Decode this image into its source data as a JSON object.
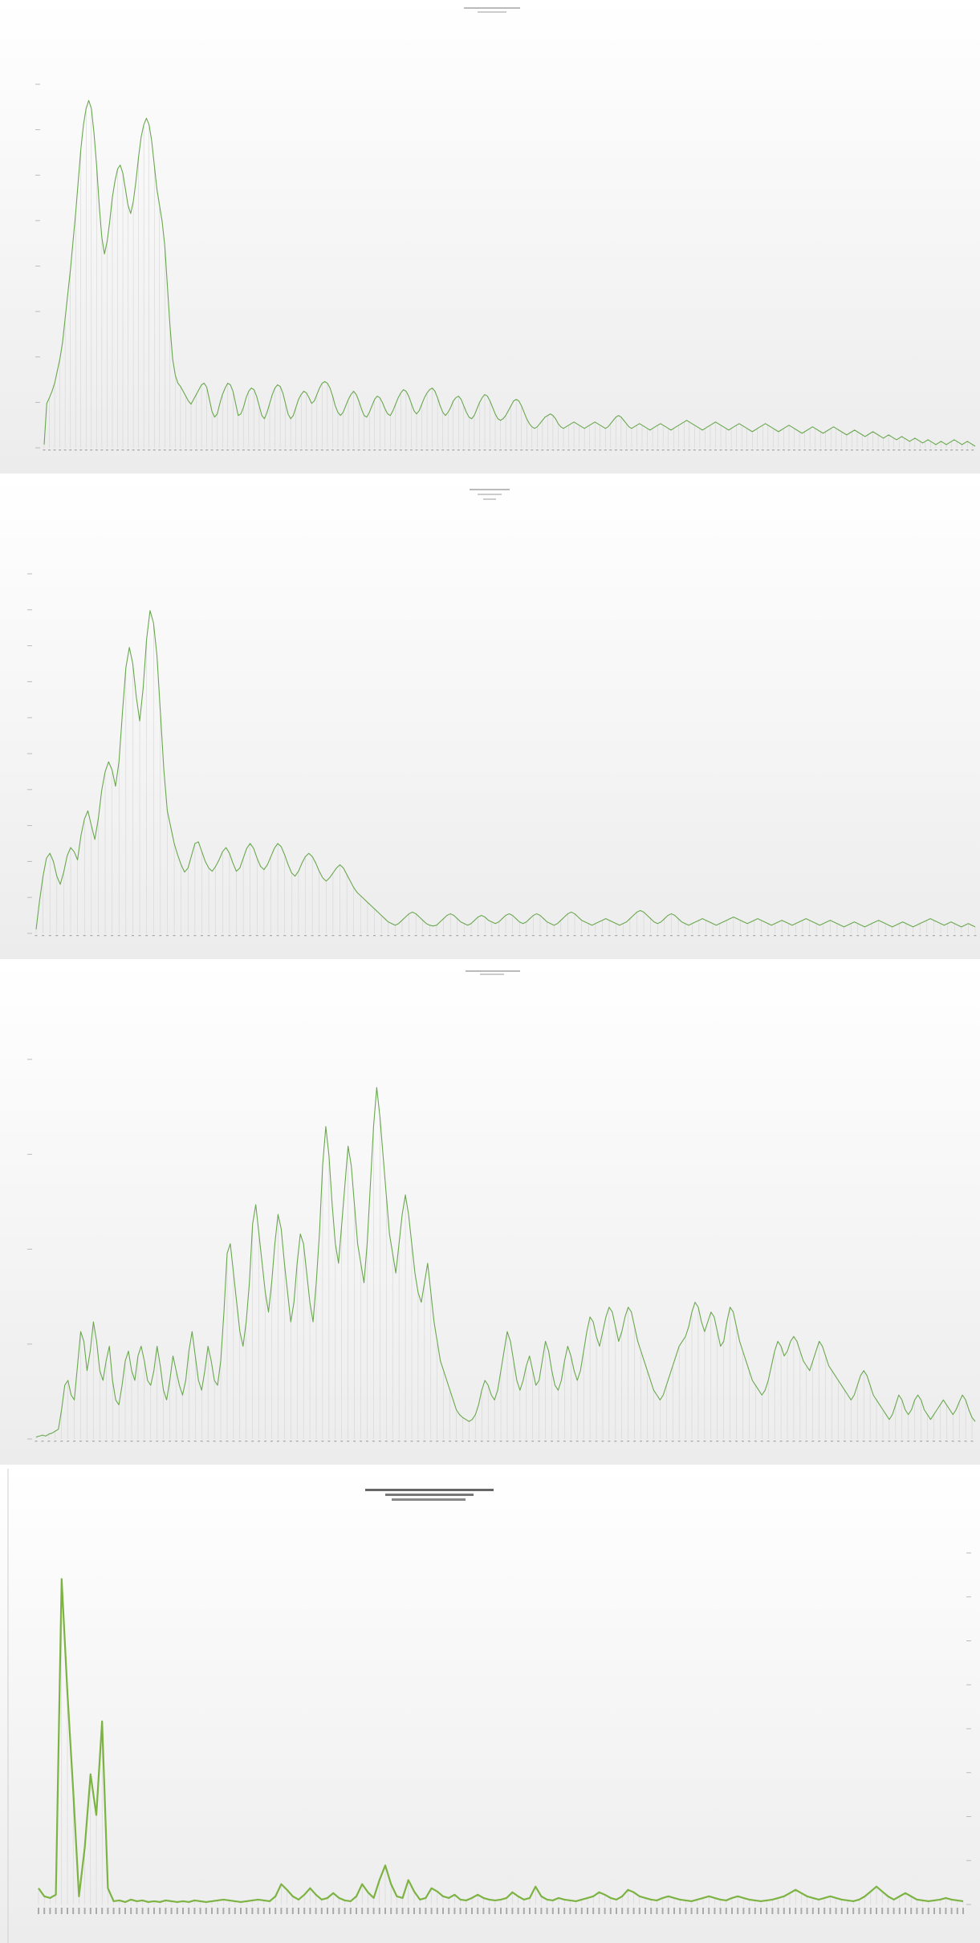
{
  "colors": {
    "line": "#6aa84f",
    "line_bold": "#7cb342",
    "bg_top": "#ffffff",
    "bg_bottom": "#efefef",
    "grid": "#d0d0d0"
  },
  "chart_data": [
    {
      "type": "line",
      "title": "",
      "subtitle": "",
      "values": [
        4,
        55,
        62,
        70,
        80,
        95,
        110,
        130,
        160,
        190,
        220,
        255,
        290,
        330,
        370,
        400,
        420,
        430,
        420,
        390,
        350,
        300,
        260,
        240,
        255,
        280,
        310,
        330,
        345,
        350,
        340,
        320,
        300,
        290,
        305,
        330,
        360,
        385,
        400,
        408,
        400,
        380,
        350,
        320,
        300,
        280,
        250,
        200,
        150,
        110,
        90,
        80,
        76,
        70,
        64,
        58,
        54,
        60,
        66,
        72,
        78,
        80,
        75,
        60,
        45,
        38,
        42,
        55,
        66,
        74,
        80,
        78,
        70,
        55,
        40,
        42,
        50,
        62,
        70,
        74,
        72,
        64,
        52,
        40,
        36,
        44,
        55,
        66,
        74,
        78,
        76,
        68,
        55,
        42,
        36,
        40,
        50,
        60,
        66,
        70,
        68,
        62,
        55,
        58,
        66,
        74,
        80,
        82,
        80,
        74,
        64,
        52,
        44,
        40,
        44,
        52,
        60,
        66,
        70,
        66,
        58,
        48,
        40,
        38,
        44,
        52,
        60,
        64,
        62,
        56,
        48,
        42,
        40,
        46,
        54,
        62,
        68,
        72,
        70,
        64,
        55,
        46,
        42,
        46,
        54,
        62,
        68,
        72,
        74,
        70,
        62,
        52,
        44,
        40,
        44,
        50,
        58,
        62,
        64,
        60,
        52,
        44,
        38,
        36,
        40,
        48,
        56,
        62,
        66,
        64,
        58,
        50,
        42,
        36,
        34,
        36,
        40,
        46,
        52,
        58,
        60,
        58,
        52,
        44,
        36,
        30,
        26,
        24,
        26,
        30,
        34,
        38,
        40,
        42,
        40,
        36,
        30,
        26,
        24,
        26,
        28,
        30,
        32,
        30,
        28,
        26,
        24,
        26,
        28,
        30,
        32,
        30,
        28,
        26,
        24,
        26,
        30,
        34,
        38,
        40,
        38,
        34,
        30,
        26,
        24,
        26,
        28,
        30,
        28,
        26,
        24,
        22,
        24,
        26,
        28,
        30,
        28,
        26,
        24,
        22,
        24,
        26,
        28,
        30,
        32,
        34,
        32,
        30,
        28,
        26,
        24,
        22,
        24,
        26,
        28,
        30,
        32,
        30,
        28,
        26,
        24,
        22,
        24,
        26,
        28,
        30,
        28,
        26,
        24,
        22,
        20,
        22,
        24,
        26,
        28,
        30,
        28,
        26,
        24,
        22,
        20,
        22,
        24,
        26,
        28,
        26,
        24,
        22,
        20,
        18,
        20,
        22,
        24,
        26,
        24,
        22,
        20,
        18,
        20,
        22,
        24,
        26,
        24,
        22,
        20,
        18,
        16,
        18,
        20,
        22,
        20,
        18,
        16,
        14,
        16,
        18,
        20,
        18,
        16,
        14,
        12,
        14,
        16,
        14,
        12,
        10,
        12,
        14,
        12,
        10,
        8,
        10,
        12,
        10,
        8,
        6,
        8,
        10,
        8,
        6,
        4,
        6,
        8,
        6,
        4,
        6,
        8,
        10,
        8,
        6,
        4,
        6,
        8,
        6,
        4,
        2
      ],
      "ylim": [
        0,
        450
      ]
    },
    {
      "type": "line",
      "title": "",
      "subtitle": "",
      "values": [
        5,
        40,
        70,
        92,
        98,
        88,
        70,
        60,
        75,
        95,
        105,
        100,
        90,
        120,
        140,
        150,
        132,
        115,
        140,
        175,
        198,
        210,
        200,
        180,
        210,
        270,
        325,
        350,
        330,
        290,
        260,
        300,
        360,
        395,
        380,
        340,
        270,
        200,
        150,
        130,
        110,
        96,
        84,
        75,
        80,
        95,
        110,
        112,
        100,
        88,
        80,
        76,
        82,
        90,
        100,
        105,
        98,
        86,
        76,
        80,
        92,
        104,
        110,
        104,
        92,
        82,
        78,
        84,
        94,
        104,
        110,
        106,
        96,
        84,
        74,
        70,
        76,
        86,
        94,
        98,
        94,
        86,
        76,
        68,
        64,
        68,
        74,
        80,
        84,
        80,
        72,
        64,
        56,
        50,
        46,
        42,
        38,
        34,
        30,
        26,
        22,
        18,
        14,
        12,
        10,
        12,
        16,
        20,
        24,
        26,
        24,
        20,
        16,
        12,
        10,
        9,
        10,
        14,
        18,
        22,
        24,
        22,
        18,
        14,
        12,
        10,
        12,
        16,
        20,
        22,
        20,
        16,
        14,
        12,
        14,
        18,
        22,
        24,
        22,
        18,
        14,
        12,
        14,
        18,
        22,
        24,
        22,
        18,
        14,
        12,
        10,
        12,
        16,
        20,
        24,
        26,
        24,
        20,
        16,
        14,
        12,
        10,
        12,
        14,
        16,
        18,
        16,
        14,
        12,
        10,
        12,
        14,
        18,
        22,
        26,
        28,
        26,
        22,
        18,
        14,
        12,
        14,
        18,
        22,
        24,
        22,
        18,
        14,
        12,
        10,
        12,
        14,
        16,
        18,
        16,
        14,
        12,
        10,
        12,
        14,
        16,
        18,
        20,
        18,
        16,
        14,
        12,
        14,
        16,
        18,
        16,
        14,
        12,
        10,
        12,
        14,
        16,
        14,
        12,
        10,
        12,
        14,
        16,
        18,
        16,
        14,
        12,
        10,
        12,
        14,
        16,
        14,
        12,
        10,
        8,
        10,
        12,
        14,
        12,
        10,
        8,
        10,
        12,
        14,
        16,
        14,
        12,
        10,
        8,
        10,
        12,
        14,
        12,
        10,
        8,
        10,
        12,
        14,
        16,
        18,
        16,
        14,
        12,
        10,
        12,
        14,
        12,
        10,
        8,
        10,
        12,
        10,
        8
      ],
      "ylim": [
        0,
        440
      ]
    },
    {
      "type": "line",
      "title": "",
      "subtitle": "",
      "values": [
        2,
        3,
        4,
        3,
        5,
        6,
        8,
        10,
        30,
        55,
        60,
        45,
        40,
        75,
        110,
        100,
        70,
        90,
        120,
        100,
        70,
        60,
        80,
        95,
        60,
        40,
        35,
        55,
        80,
        90,
        70,
        60,
        85,
        95,
        80,
        60,
        55,
        70,
        95,
        75,
        50,
        40,
        60,
        85,
        70,
        55,
        45,
        60,
        90,
        110,
        85,
        60,
        50,
        70,
        95,
        80,
        60,
        55,
        80,
        130,
        190,
        200,
        170,
        140,
        110,
        95,
        120,
        160,
        220,
        240,
        210,
        180,
        150,
        130,
        160,
        200,
        230,
        215,
        180,
        150,
        120,
        140,
        180,
        210,
        200,
        170,
        140,
        120,
        160,
        210,
        280,
        320,
        290,
        240,
        200,
        180,
        220,
        260,
        300,
        280,
        240,
        200,
        180,
        160,
        200,
        260,
        320,
        360,
        330,
        290,
        250,
        210,
        190,
        170,
        200,
        230,
        250,
        230,
        200,
        170,
        150,
        140,
        160,
        180,
        150,
        120,
        100,
        80,
        70,
        60,
        50,
        40,
        30,
        25,
        22,
        20,
        18,
        20,
        25,
        35,
        50,
        60,
        55,
        45,
        40,
        50,
        70,
        90,
        110,
        100,
        80,
        60,
        50,
        60,
        75,
        85,
        70,
        55,
        60,
        80,
        100,
        90,
        70,
        55,
        50,
        60,
        80,
        95,
        85,
        70,
        60,
        70,
        90,
        110,
        125,
        120,
        105,
        95,
        110,
        125,
        135,
        130,
        115,
        100,
        110,
        125,
        135,
        130,
        115,
        100,
        90,
        80,
        70,
        60,
        50,
        45,
        40,
        45,
        55,
        65,
        75,
        85,
        95,
        100,
        105,
        115,
        130,
        140,
        135,
        120,
        110,
        120,
        130,
        125,
        110,
        95,
        100,
        120,
        135,
        130,
        115,
        100,
        90,
        80,
        70,
        60,
        55,
        50,
        45,
        50,
        60,
        75,
        90,
        100,
        95,
        85,
        90,
        100,
        105,
        100,
        90,
        80,
        75,
        70,
        80,
        90,
        100,
        95,
        85,
        75,
        70,
        65,
        60,
        55,
        50,
        45,
        40,
        45,
        55,
        65,
        70,
        65,
        55,
        45,
        40,
        35,
        30,
        25,
        20,
        25,
        35,
        45,
        40,
        30,
        25,
        30,
        40,
        45,
        40,
        30,
        25,
        20,
        25,
        30,
        35,
        40,
        35,
        30,
        25,
        30,
        38,
        45,
        40,
        30,
        22,
        18
      ]
    },
    {
      "type": "line",
      "title": "",
      "subtitle": "",
      "values": [
        20,
        10,
        8,
        12,
        400,
        260,
        140,
        10,
        70,
        160,
        110,
        225,
        20,
        4,
        5,
        3,
        6,
        4,
        5,
        3,
        4,
        3,
        5,
        4,
        3,
        4,
        3,
        5,
        4,
        3,
        4,
        5,
        6,
        5,
        4,
        3,
        4,
        5,
        6,
        5,
        4,
        10,
        25,
        18,
        10,
        6,
        12,
        20,
        12,
        6,
        8,
        14,
        8,
        5,
        4,
        10,
        25,
        15,
        8,
        30,
        48,
        25,
        10,
        8,
        30,
        16,
        6,
        8,
        20,
        16,
        10,
        8,
        12,
        6,
        5,
        8,
        12,
        8,
        6,
        5,
        6,
        8,
        15,
        10,
        6,
        8,
        22,
        10,
        6,
        5,
        8,
        6,
        5,
        4,
        6,
        8,
        10,
        15,
        12,
        8,
        6,
        10,
        18,
        15,
        10,
        8,
        6,
        5,
        8,
        10,
        8,
        6,
        5,
        4,
        6,
        8,
        10,
        8,
        6,
        5,
        8,
        10,
        8,
        6,
        5,
        4,
        5,
        6,
        8,
        10,
        14,
        18,
        14,
        10,
        8,
        6,
        8,
        10,
        8,
        6,
        5,
        4,
        6,
        10,
        16,
        22,
        16,
        10,
        6,
        10,
        14,
        10,
        6,
        5,
        4,
        5,
        6,
        8,
        6,
        5,
        4
      ]
    }
  ]
}
